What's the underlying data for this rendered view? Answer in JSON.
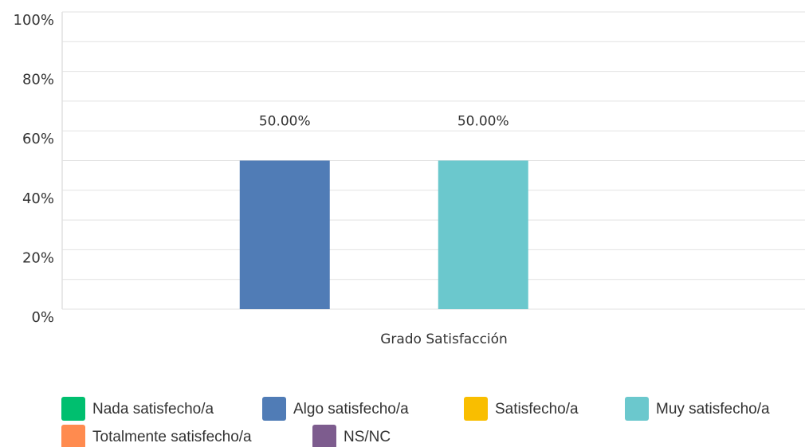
{
  "chart_data": {
    "type": "bar",
    "x_label": "Grado Satisfacción",
    "categories": [
      "Grado Satisfacción"
    ],
    "series": [
      {
        "name": "Nada satisfecho/a",
        "color": "#00bf6f",
        "values": [
          0
        ]
      },
      {
        "name": "Algo satisfecho/a",
        "color": "#507cb6",
        "values": [
          50
        ],
        "value_labels": [
          "50.00%"
        ]
      },
      {
        "name": "Satisfecho/a",
        "color": "#f9be00",
        "values": [
          0
        ]
      },
      {
        "name": "Muy satisfecho/a",
        "color": "#6bc8cd",
        "values": [
          50
        ],
        "value_labels": [
          "50.00%"
        ]
      },
      {
        "name": "Totalmente satisfecho/a",
        "color": "#ff8b4f",
        "values": [
          0
        ]
      },
      {
        "name": "NS/NC",
        "color": "#7d5c8e",
        "values": [
          0
        ]
      }
    ],
    "ylim": [
      0,
      100
    ],
    "yticks": [
      {
        "value": 0,
        "label": "0%"
      },
      {
        "value": 20,
        "label": "20%"
      },
      {
        "value": 40,
        "label": "40%"
      },
      {
        "value": 60,
        "label": "60%"
      },
      {
        "value": 80,
        "label": "80%"
      },
      {
        "value": 100,
        "label": "100%"
      }
    ],
    "minor_yticks": [
      10,
      30,
      50,
      70,
      90
    ],
    "grid": true,
    "legend": "bottom"
  }
}
